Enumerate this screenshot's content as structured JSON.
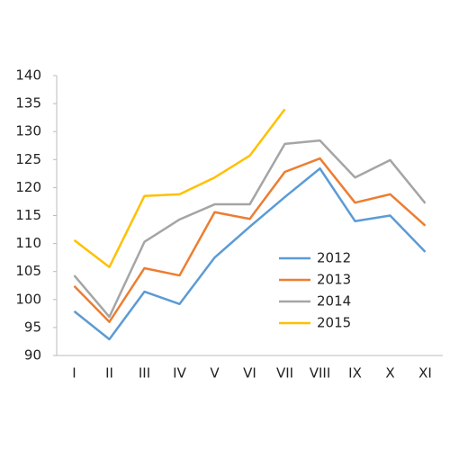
{
  "chart_data": {
    "type": "line",
    "categories": [
      "I",
      "II",
      "III",
      "IV",
      "V",
      "VI",
      "VII",
      "VIII",
      "IX",
      "X",
      "XI"
    ],
    "series": [
      {
        "name": "2012",
        "color": "#5b9bd5",
        "values": [
          97.9,
          92.9,
          101.4,
          99.2,
          107.5,
          113,
          118.3,
          123.4,
          114,
          115,
          108.5
        ]
      },
      {
        "name": "2013",
        "color": "#ed7d31",
        "values": [
          102.4,
          96,
          105.6,
          104.3,
          115.6,
          114.4,
          122.8,
          125.2,
          117.3,
          118.8,
          113.2
        ]
      },
      {
        "name": "2014",
        "color": "#a5a5a5",
        "values": [
          104.3,
          96.9,
          110.3,
          114.3,
          117,
          117,
          127.8,
          128.4,
          121.8,
          124.9,
          117.2
        ]
      },
      {
        "name": "2015",
        "color": "#ffc000",
        "values": [
          110.6,
          105.8,
          118.5,
          118.8,
          121.8,
          125.7,
          134,
          null,
          null,
          null,
          null
        ]
      }
    ],
    "ylim": [
      90,
      140
    ],
    "yticks": [
      90,
      95,
      100,
      105,
      110,
      115,
      120,
      125,
      130,
      135,
      140
    ]
  }
}
